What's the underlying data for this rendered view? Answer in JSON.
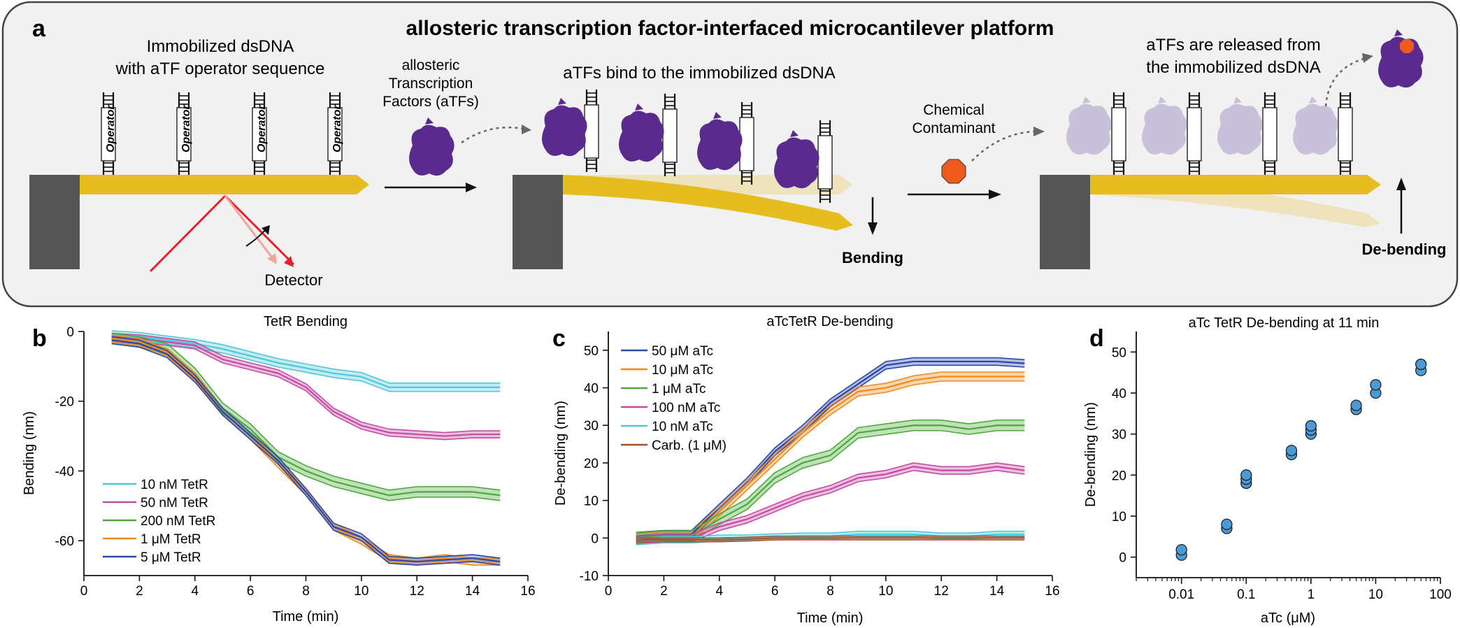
{
  "panel_a": {
    "letter": "a",
    "title": "allosteric transcription factor-interfaced microcantilever platform",
    "immobilized_line1": "Immobilized dsDNA",
    "immobilized_line2": "with aTF operator sequence",
    "operator_label": "Operator",
    "atf_line1": "allosteric",
    "atf_line2": "Transcription",
    "atf_line3": "Factors (aTFs)",
    "bind_text": "aTFs bind to the immobilized dsDNA",
    "detector": "Detector",
    "bending": "Bending",
    "chem_line1": "Chemical",
    "chem_line2": "Contaminant",
    "release_line1": "aTFs are released from",
    "release_line2": "the immobilized dsDNA",
    "debending": "De-bending",
    "colors": {
      "cantilever": "#e6bd1e",
      "protein": "#5a2a8f",
      "protein_light": "#c9c1d9",
      "contaminant": "#f05a1e",
      "laser": "#e8202a",
      "base": "#555555",
      "box_bg": "#f1f1f1"
    }
  },
  "chart_data": [
    {
      "panel": "b",
      "type": "line",
      "title": "TetR Bending",
      "xlabel": "Time (min)",
      "ylabel": "Bending (nm)",
      "xlim": [
        0,
        16
      ],
      "ylim": [
        -70,
        0
      ],
      "xticks": [
        0,
        2,
        4,
        6,
        8,
        10,
        12,
        14,
        16
      ],
      "yticks": [
        0,
        -20,
        -40,
        -60
      ],
      "x": [
        1,
        2,
        3,
        4,
        5,
        6,
        7,
        8,
        9,
        10,
        11,
        12,
        13,
        14,
        15
      ],
      "legend": "bottom-left",
      "series": [
        {
          "name": "10 nM TetR",
          "color": "#4fc8d8",
          "values": [
            -1,
            -1.5,
            -2.5,
            -3.5,
            -5,
            -7,
            -9,
            -10.5,
            -12,
            -13,
            -16,
            -16,
            -16,
            -16,
            -16
          ],
          "band": 1.2
        },
        {
          "name": "50 nM TetR",
          "color": "#c64ba3",
          "values": [
            -1.5,
            -2,
            -3,
            -4,
            -8,
            -10,
            -12,
            -16,
            -23,
            -27,
            -29,
            -29.5,
            -30,
            -29.5,
            -29.5
          ],
          "band": 1.0
        },
        {
          "name": "200 nM TetR",
          "color": "#4aaa3a",
          "values": [
            -2,
            -3,
            -5,
            -12,
            -22,
            -28,
            -36,
            -40,
            -43,
            -45,
            -47,
            -46,
            -46,
            -46,
            -47
          ],
          "band": 1.5
        },
        {
          "name": "1 μM TetR",
          "color": "#f08a1c",
          "values": [
            -2,
            -3,
            -6,
            -13,
            -23,
            -30,
            -38,
            -46,
            -56,
            -60,
            -65,
            -66,
            -65,
            -66,
            -66
          ],
          "band": 1.0
        },
        {
          "name": "5 μM TetR",
          "color": "#2a48a8",
          "values": [
            -2.5,
            -3.5,
            -6.5,
            -13.5,
            -23,
            -30,
            -37,
            -46,
            -56,
            -59,
            -65.5,
            -66,
            -65.5,
            -65,
            -66
          ],
          "band": 1.0
        }
      ]
    },
    {
      "panel": "c",
      "type": "line",
      "title": "aTcTetR De-bending",
      "xlabel": "Time (min)",
      "ylabel": "De-bending (nm)",
      "xlim": [
        0,
        16
      ],
      "ylim": [
        -10,
        55
      ],
      "xticks": [
        0,
        2,
        4,
        6,
        8,
        10,
        12,
        14,
        16
      ],
      "yticks": [
        -10,
        0,
        10,
        20,
        30,
        40,
        50
      ],
      "x": [
        1,
        2,
        3,
        4,
        5,
        6,
        7,
        8,
        9,
        10,
        11,
        12,
        13,
        14,
        15
      ],
      "legend": "top-left",
      "series": [
        {
          "name": "50 μM aTc",
          "color": "#2a48a8",
          "values": [
            0.5,
            1,
            1,
            8,
            15,
            23,
            29,
            36,
            41,
            46,
            47,
            47,
            47,
            47,
            46.5
          ],
          "band": 1.0
        },
        {
          "name": "10 μM aTc",
          "color": "#f08a1c",
          "values": [
            0,
            0.5,
            0.5,
            7,
            14,
            21,
            28,
            34,
            39,
            40,
            42,
            43,
            43,
            43,
            43
          ],
          "band": 1.2
        },
        {
          "name": "1 μM aTc",
          "color": "#4aaa3a",
          "values": [
            0,
            0.5,
            0.5,
            5,
            9,
            16,
            20,
            22,
            28,
            29,
            30,
            30,
            29,
            30,
            30
          ],
          "band": 1.4
        },
        {
          "name": "100 nM aTc",
          "color": "#c64ba3",
          "values": [
            -0.5,
            0,
            0,
            3,
            5,
            8,
            11,
            13,
            16,
            17,
            19,
            18,
            18,
            19,
            18
          ],
          "band": 1.0
        },
        {
          "name": "10 nM aTc",
          "color": "#4fc8d8",
          "values": [
            -1,
            -0.5,
            -0.5,
            0,
            0,
            0.3,
            0.5,
            0.5,
            1,
            1,
            1,
            0.5,
            0.5,
            1,
            1
          ],
          "band": 0.8
        },
        {
          "name": "Carb. (1 μM)",
          "color": "#a0522d",
          "values": [
            -0.5,
            -0.5,
            -0.5,
            -0.5,
            -0.3,
            0,
            0,
            0,
            0,
            0,
            0,
            0,
            0,
            0,
            0
          ],
          "band": 0.5
        }
      ]
    },
    {
      "panel": "d",
      "type": "scatter",
      "title": "aTc TetR De-bending at 11 min",
      "xlabel": "aTc (μM)",
      "ylabel": "De-bending (nm)",
      "xscale": "log",
      "xlim": [
        0.002,
        100
      ],
      "ylim": [
        -5,
        55
      ],
      "xticks": [
        0.01,
        0.1,
        1,
        10,
        100
      ],
      "xticklabels": [
        "0.01",
        "0.1",
        "1",
        "10",
        "100"
      ],
      "yticks": [
        0,
        10,
        20,
        30,
        40,
        50
      ],
      "color": "#4a9ad8",
      "points": [
        {
          "x": 0.01,
          "y": 0.5
        },
        {
          "x": 0.01,
          "y": 1.8
        },
        {
          "x": 0.05,
          "y": 7
        },
        {
          "x": 0.05,
          "y": 8
        },
        {
          "x": 0.1,
          "y": 18
        },
        {
          "x": 0.1,
          "y": 19
        },
        {
          "x": 0.1,
          "y": 20
        },
        {
          "x": 0.5,
          "y": 25
        },
        {
          "x": 0.5,
          "y": 26
        },
        {
          "x": 1,
          "y": 30
        },
        {
          "x": 1,
          "y": 31
        },
        {
          "x": 1,
          "y": 32
        },
        {
          "x": 5,
          "y": 36
        },
        {
          "x": 5,
          "y": 37
        },
        {
          "x": 10,
          "y": 40
        },
        {
          "x": 10,
          "y": 42
        },
        {
          "x": 50,
          "y": 45.5
        },
        {
          "x": 50,
          "y": 47
        }
      ]
    }
  ]
}
